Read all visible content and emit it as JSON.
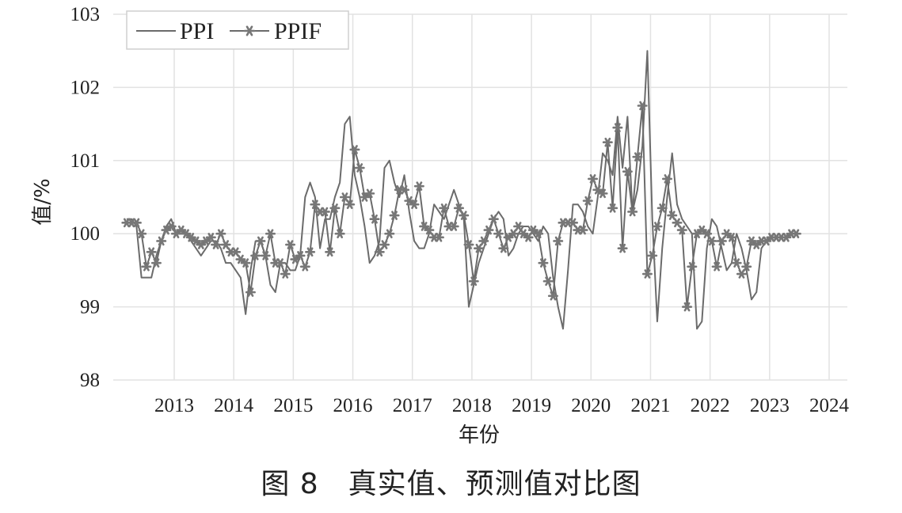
{
  "caption": "图 8　真实值、预测值对比图",
  "chart_data": {
    "type": "line",
    "xlabel": "年份",
    "ylabel": "值/%",
    "ylim": [
      98,
      103
    ],
    "yticks": [
      98,
      99,
      100,
      101,
      102,
      103
    ],
    "xlim": [
      2012.2,
      2024.25
    ],
    "xticks": [
      2013,
      2014,
      2015,
      2016,
      2017,
      2018,
      2019,
      2020,
      2021,
      2022,
      2023,
      2024
    ],
    "grid": true,
    "legend_position": "top-left",
    "series": [
      {
        "name": "PPI",
        "marker": "none",
        "color": "#6b6b6b",
        "x_start": 2012.2,
        "x_step": 0.0833,
        "values": [
          100.2,
          100.2,
          100.1,
          99.4,
          99.4,
          99.4,
          99.7,
          99.9,
          100.1,
          100.2,
          100.0,
          100.0,
          100.0,
          99.9,
          99.8,
          99.7,
          99.8,
          99.9,
          99.9,
          99.8,
          99.6,
          99.6,
          99.5,
          99.4,
          98.9,
          99.5,
          99.9,
          99.9,
          99.7,
          99.3,
          99.2,
          99.6,
          99.6,
          99.5,
          99.5,
          99.7,
          100.5,
          100.7,
          100.5,
          99.8,
          100.2,
          100.2,
          100.5,
          100.7,
          101.5,
          101.6,
          100.8,
          100.5,
          100.1,
          99.6,
          99.7,
          99.9,
          100.9,
          101.0,
          100.7,
          100.5,
          100.8,
          100.3,
          99.9,
          99.8,
          99.8,
          100.0,
          100.4,
          100.3,
          100.2,
          100.4,
          100.6,
          100.4,
          100.2,
          99.0,
          99.3,
          99.6,
          99.8,
          100.0,
          100.2,
          100.3,
          100.2,
          99.7,
          99.8,
          100.0,
          100.1,
          100.1,
          100.0,
          99.9,
          100.1,
          100.0,
          99.4,
          99.0,
          98.7,
          99.5,
          100.4,
          100.4,
          100.3,
          100.1,
          100.0,
          100.5,
          101.1,
          101.0,
          100.8,
          101.6,
          100.9,
          101.6,
          100.3,
          100.6,
          101.2,
          102.5,
          100.2,
          98.8,
          99.8,
          100.5,
          101.1,
          100.4,
          100.2,
          100.1,
          100.0,
          98.7,
          98.8,
          99.8,
          100.2,
          100.1,
          99.8,
          99.5,
          99.6,
          100.0,
          99.8,
          99.5,
          99.1,
          99.2,
          99.8,
          99.9
        ]
      },
      {
        "name": "PPIF",
        "marker": "asterisk",
        "color": "#6b6b6b",
        "x_start": 2012.2,
        "x_step": 0.0833,
        "values": [
          100.15,
          100.15,
          100.15,
          100.0,
          99.55,
          99.75,
          99.6,
          99.9,
          100.05,
          100.1,
          100.0,
          100.05,
          100.0,
          99.95,
          99.9,
          99.85,
          99.9,
          99.95,
          99.85,
          100.0,
          99.85,
          99.75,
          99.75,
          99.65,
          99.6,
          99.2,
          99.7,
          99.9,
          99.7,
          100.0,
          99.6,
          99.6,
          99.45,
          99.85,
          99.65,
          99.7,
          99.55,
          99.75,
          100.4,
          100.3,
          100.3,
          99.75,
          100.35,
          100.0,
          100.5,
          100.4,
          101.15,
          100.9,
          100.5,
          100.55,
          100.2,
          99.75,
          99.85,
          100.0,
          100.25,
          100.6,
          100.6,
          100.45,
          100.4,
          100.65,
          100.1,
          100.05,
          99.95,
          99.95,
          100.35,
          100.1,
          100.1,
          100.35,
          100.25,
          99.85,
          99.35,
          99.8,
          99.9,
          100.05,
          100.2,
          100.0,
          99.8,
          99.95,
          100.0,
          100.1,
          100.0,
          99.95,
          100.05,
          100.0,
          99.6,
          99.35,
          99.15,
          99.9,
          100.15,
          100.15,
          100.15,
          100.05,
          100.05,
          100.45,
          100.75,
          100.6,
          100.55,
          101.25,
          100.35,
          101.45,
          99.8,
          100.85,
          100.3,
          101.05,
          101.75,
          99.45,
          99.7,
          100.1,
          100.35,
          100.75,
          100.25,
          100.15,
          100.05,
          99.0,
          99.55,
          100.0,
          100.05,
          100.0,
          99.9,
          99.55,
          99.9,
          100.0,
          99.95,
          99.6,
          99.45,
          99.55,
          99.9,
          99.85,
          99.9,
          99.9,
          99.95,
          99.95,
          99.95,
          99.95,
          100.0,
          100.0
        ]
      }
    ]
  }
}
